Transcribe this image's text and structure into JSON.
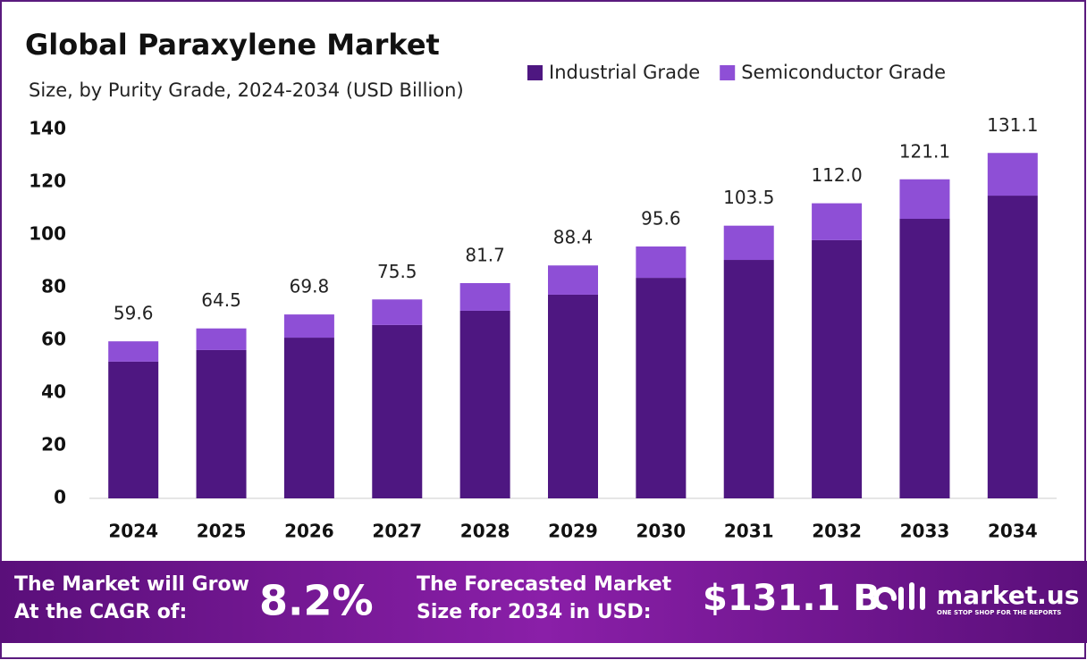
{
  "chart_data": {
    "type": "stacked-bar",
    "title": "Global Paraxylene Market",
    "subtitle": "Size, by Purity Grade, 2024-2034 (USD Billion)",
    "categories": [
      "2024",
      "2025",
      "2026",
      "2027",
      "2028",
      "2029",
      "2030",
      "2031",
      "2032",
      "2033",
      "2034"
    ],
    "series": [
      {
        "name": "Industrial Grade",
        "color": "#4e1781",
        "values": [
          51.9,
          56.3,
          61.0,
          65.8,
          71.2,
          77.3,
          83.7,
          90.5,
          98.0,
          106.1,
          114.9
        ]
      },
      {
        "name": "Semiconductor Grade",
        "color": "#8e4fd6",
        "values": [
          7.7,
          8.2,
          8.8,
          9.7,
          10.5,
          11.1,
          11.9,
          13.0,
          14.0,
          15.0,
          16.2
        ]
      }
    ],
    "total_labels": [
      "59.6",
      "64.5",
      "69.8",
      "75.5",
      "81.7",
      "88.4",
      "95.6",
      "103.5",
      "112.0",
      "121.1",
      "131.1"
    ],
    "ylim": [
      0,
      140
    ],
    "yticks": [
      0,
      20,
      40,
      60,
      80,
      100,
      120,
      140
    ],
    "grid": false,
    "legend": "top-right"
  },
  "footer": {
    "cagr_text_1": "The Market will Grow",
    "cagr_text_2": "At the CAGR of:",
    "cagr": "8.2%",
    "forecast_text_1": "The Forecasted Market",
    "forecast_text_2": "Size for 2034 in USD:",
    "forecast": "$131.1 B",
    "brand": "market.us",
    "tagline": "ONE STOP SHOP FOR THE REPORTS"
  }
}
